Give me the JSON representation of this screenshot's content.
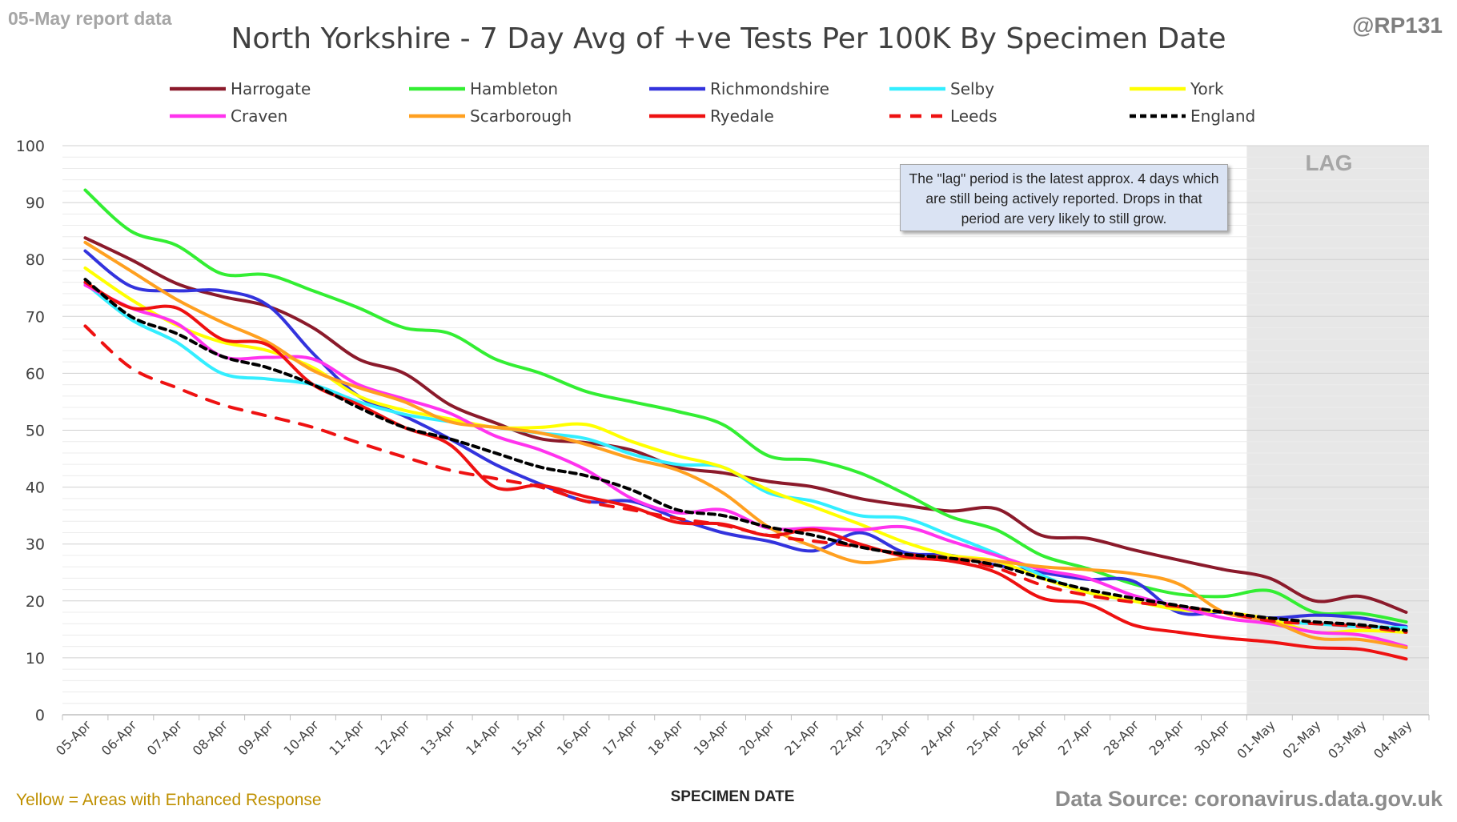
{
  "header": {
    "report_date_label": "05-May report data",
    "handle": "@RP131"
  },
  "footer": {
    "note": "Yellow = Areas with Enhanced Response",
    "source": "Data Source: coronavirus.data.gov.uk"
  },
  "annotation": {
    "text": "The \"lag\" period is the latest approx. 4 days which are still being actively reported.  Drops in that period are very likely to still grow.",
    "lag_label": "LAG"
  },
  "chart_data": {
    "type": "line",
    "title": "North Yorkshire - 7 Day Avg of +ve Tests Per 100K By Specimen Date",
    "xlabel": "SPECIMEN DATE",
    "ylabel": "",
    "ylim": [
      0,
      100
    ],
    "yticks": [
      0,
      10,
      20,
      30,
      40,
      50,
      60,
      70,
      80,
      90,
      100
    ],
    "grid": true,
    "legend_position": "top",
    "lag_region": {
      "from": "30-Apr",
      "to": "04-May"
    },
    "categories": [
      "05-Apr",
      "06-Apr",
      "07-Apr",
      "08-Apr",
      "09-Apr",
      "10-Apr",
      "11-Apr",
      "12-Apr",
      "13-Apr",
      "14-Apr",
      "15-Apr",
      "16-Apr",
      "17-Apr",
      "18-Apr",
      "19-Apr",
      "20-Apr",
      "21-Apr",
      "22-Apr",
      "23-Apr",
      "24-Apr",
      "25-Apr",
      "26-Apr",
      "27-Apr",
      "28-Apr",
      "29-Apr",
      "30-Apr",
      "01-May",
      "02-May",
      "03-May",
      "04-May"
    ],
    "series": [
      {
        "name": "Harrogate",
        "color": "#8b1a2b",
        "dash": "solid",
        "values": [
          83.8,
          80.0,
          75.8,
          73.5,
          71.8,
          68.0,
          62.5,
          60.0,
          54.5,
          51.3,
          48.5,
          47.8,
          46.5,
          43.5,
          42.5,
          41.0,
          40.0,
          38.0,
          36.8,
          35.8,
          36.2,
          31.5,
          31.0,
          29.0,
          27.2,
          25.5,
          24.0,
          20.0,
          20.8,
          18.0
        ]
      },
      {
        "name": "Hambleton",
        "color": "#33ee33",
        "dash": "solid",
        "values": [
          92.2,
          85.0,
          82.5,
          77.5,
          77.3,
          74.5,
          71.5,
          68.0,
          67.0,
          62.5,
          60.0,
          56.8,
          55.0,
          53.3,
          51.0,
          45.5,
          44.7,
          42.5,
          38.8,
          34.8,
          32.5,
          28.0,
          25.7,
          23.0,
          21.2,
          20.8,
          21.8,
          18.0,
          17.8,
          16.3
        ]
      },
      {
        "name": "Richmondshire",
        "color": "#3333dd",
        "dash": "solid",
        "values": [
          81.5,
          75.3,
          74.5,
          74.5,
          72.0,
          63.5,
          56.0,
          52.5,
          48.5,
          44.0,
          40.5,
          37.5,
          37.5,
          34.5,
          32.0,
          30.5,
          28.8,
          32.0,
          28.5,
          28.0,
          26.3,
          25.0,
          23.8,
          23.5,
          18.0,
          18.0,
          17.0,
          17.5,
          17.0,
          15.5
        ]
      },
      {
        "name": "Selby",
        "color": "#33eeff",
        "dash": "solid",
        "values": [
          75.8,
          69.5,
          65.5,
          60.0,
          59.0,
          58.0,
          55.0,
          52.8,
          51.5,
          50.5,
          49.5,
          48.5,
          45.8,
          44.0,
          43.5,
          39.0,
          37.5,
          35.0,
          34.5,
          31.5,
          28.3,
          24.5,
          21.5,
          20.0,
          18.5,
          18.0,
          16.5,
          16.0,
          15.5,
          15.3
        ]
      },
      {
        "name": "York",
        "color": "#ffff00",
        "dash": "solid",
        "values": [
          78.5,
          73.0,
          68.5,
          65.5,
          64.0,
          61.0,
          56.0,
          53.5,
          52.0,
          50.5,
          50.5,
          51.0,
          48.0,
          45.5,
          43.5,
          39.5,
          36.5,
          33.5,
          30.3,
          28.0,
          27.0,
          24.0,
          21.5,
          20.0,
          18.5,
          18.0,
          16.8,
          14.5,
          14.8,
          14.5
        ]
      },
      {
        "name": "Craven",
        "color": "#ff33ee",
        "dash": "solid",
        "values": [
          75.5,
          71.5,
          68.8,
          63.0,
          62.8,
          62.5,
          58.0,
          55.5,
          53.0,
          49.0,
          46.5,
          43.0,
          38.0,
          35.5,
          36.0,
          32.8,
          32.8,
          32.5,
          33.0,
          30.5,
          28.0,
          25.5,
          24.0,
          21.0,
          19.0,
          17.0,
          16.0,
          14.5,
          14.0,
          12.0
        ]
      },
      {
        "name": "Scarborough",
        "color": "#ffa020",
        "dash": "solid",
        "values": [
          83.0,
          78.0,
          73.0,
          69.0,
          65.5,
          60.5,
          57.5,
          55.0,
          51.5,
          50.5,
          49.5,
          47.5,
          45.0,
          43.0,
          39.0,
          33.0,
          29.5,
          26.8,
          27.5,
          27.5,
          27.0,
          26.0,
          25.5,
          24.8,
          23.0,
          18.0,
          16.5,
          13.5,
          13.2,
          11.8
        ]
      },
      {
        "name": "Ryedale",
        "color": "#ee1111",
        "dash": "solid",
        "values": [
          76.0,
          71.5,
          71.5,
          66.0,
          65.0,
          58.0,
          54.5,
          50.5,
          47.5,
          40.0,
          40.3,
          38.3,
          36.5,
          33.8,
          33.5,
          31.5,
          32.5,
          30.0,
          27.8,
          27.0,
          25.0,
          20.5,
          19.5,
          15.8,
          14.5,
          13.5,
          12.8,
          11.8,
          11.5,
          9.8
        ]
      },
      {
        "name": "Leeds",
        "color": "#ee1111",
        "dash": "dashed",
        "values": [
          68.3,
          61.0,
          57.5,
          54.5,
          52.5,
          50.5,
          47.8,
          45.3,
          43.0,
          41.5,
          40.0,
          37.5,
          36.0,
          34.5,
          33.3,
          31.5,
          30.5,
          29.5,
          28.2,
          27.5,
          25.8,
          22.8,
          21.0,
          19.8,
          19.0,
          18.0,
          16.5,
          16.0,
          15.5,
          14.5
        ]
      },
      {
        "name": "England",
        "color": "#000000",
        "dash": "dashed",
        "values": [
          76.5,
          70.0,
          67.0,
          63.0,
          61.0,
          58.0,
          54.0,
          50.5,
          48.5,
          46.0,
          43.5,
          42.0,
          39.5,
          36.0,
          35.0,
          33.0,
          31.5,
          29.5,
          28.2,
          27.5,
          26.3,
          24.0,
          22.0,
          20.5,
          19.2,
          18.0,
          17.0,
          16.3,
          15.8,
          14.8
        ]
      }
    ]
  }
}
